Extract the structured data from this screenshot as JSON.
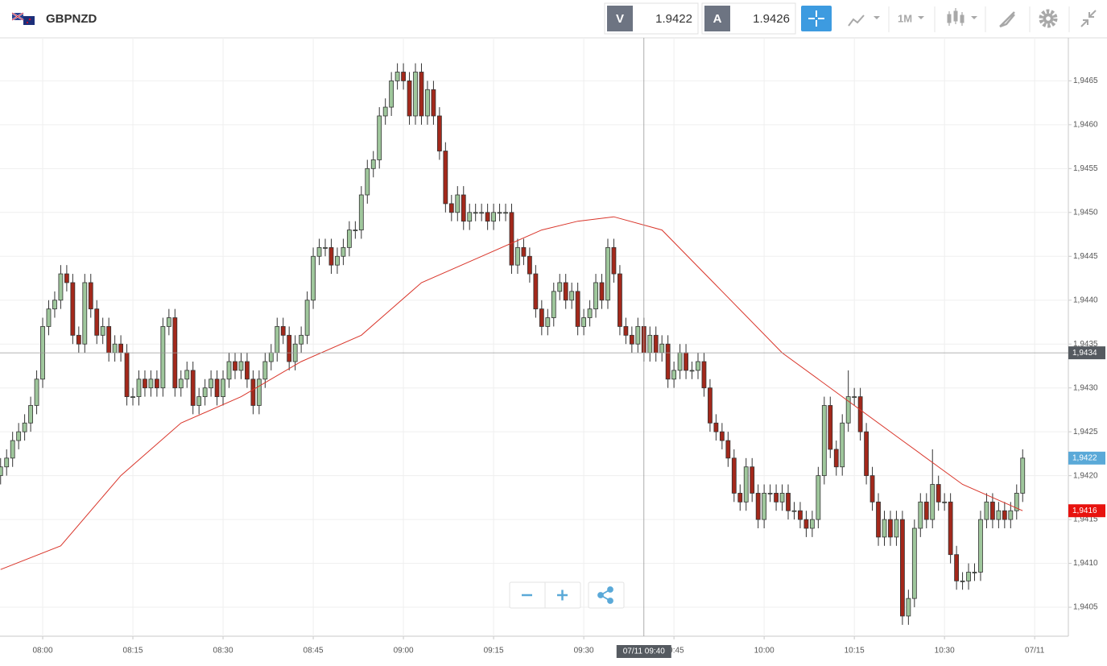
{
  "toolbar": {
    "symbol": "GBPNZD",
    "bid_label": "V",
    "bid": 1.9422,
    "ask_label": "A",
    "ask": 1.9426,
    "timeframe": "1M"
  },
  "chart_data": {
    "type": "candlestick",
    "open": [
      1.942,
      1.9421,
      1.9422,
      1.9424,
      1.9425,
      1.9426,
      1.9428,
      1.9431,
      1.9437,
      1.9439,
      1.944,
      1.9443,
      1.9442,
      1.9436,
      1.9435,
      1.9442,
      1.9439,
      1.9436,
      1.9437,
      1.9434,
      1.9435,
      1.9434,
      1.9429,
      1.9429,
      1.9431,
      1.943,
      1.9431,
      1.943,
      1.9437,
      1.9438,
      1.943,
      1.9431,
      1.9432,
      1.9428,
      1.9429,
      1.943,
      1.9431,
      1.9429,
      1.9431,
      1.9433,
      1.9432,
      1.9433,
      1.9431,
      1.9428,
      1.9431,
      1.9433,
      1.9434,
      1.9437,
      1.9436,
      1.9433,
      1.9435,
      1.9436,
      1.944,
      1.9445,
      1.9446,
      1.9446,
      1.9444,
      1.9445,
      1.9446,
      1.9448,
      1.9448,
      1.9452,
      1.9455,
      1.9456,
      1.9461,
      1.9462,
      1.9465,
      1.9466,
      1.9465,
      1.9461,
      1.9466,
      1.9461,
      1.9464,
      1.9461,
      1.9457,
      1.9451,
      1.945,
      1.9452,
      1.9449,
      1.945,
      1.945,
      1.945,
      1.9449,
      1.945,
      1.945,
      1.945,
      1.9444,
      1.9446,
      1.9445,
      1.9443,
      1.9439,
      1.9437,
      1.9438,
      1.9441,
      1.9442,
      1.944,
      1.9441,
      1.9437,
      1.9438,
      1.9439,
      1.9442,
      1.944,
      1.9446,
      1.9443,
      1.9437,
      1.9436,
      1.9435,
      1.9437,
      1.9434,
      1.9436,
      1.9434,
      1.9435,
      1.9431,
      1.9432,
      1.9434,
      1.9432,
      1.9432,
      1.9433,
      1.943,
      1.9426,
      1.9425,
      1.9424,
      1.9422,
      1.9418,
      1.9417,
      1.9421,
      1.9418,
      1.9415,
      1.9418,
      1.9418,
      1.9417,
      1.9418,
      1.9416,
      1.9416,
      1.9415,
      1.9414,
      1.9415,
      1.942,
      1.9428,
      1.9423,
      1.9421,
      1.9426,
      1.9429,
      1.9429,
      1.9425,
      1.942,
      1.9417,
      1.9413,
      1.9415,
      1.9413,
      1.9415,
      1.9404,
      1.9406,
      1.9414,
      1.9417,
      1.9415,
      1.9419,
      1.9417,
      1.9417,
      1.9411,
      1.9408,
      1.9408,
      1.9409,
      1.9409,
      1.9415,
      1.9417,
      1.9415,
      1.9416,
      1.9415,
      1.9416,
      1.9418
    ],
    "high": [
      1.9422,
      1.9423,
      1.9425,
      1.9426,
      1.9427,
      1.9429,
      1.9432,
      1.9438,
      1.944,
      1.9441,
      1.9444,
      1.9444,
      1.9443,
      1.9437,
      1.9443,
      1.9443,
      1.944,
      1.9438,
      1.9438,
      1.9436,
      1.9436,
      1.9435,
      1.943,
      1.9432,
      1.9432,
      1.9432,
      1.9432,
      1.9438,
      1.9439,
      1.9439,
      1.9432,
      1.9433,
      1.9433,
      1.943,
      1.9431,
      1.9432,
      1.9432,
      1.9432,
      1.9434,
      1.9434,
      1.9434,
      1.9434,
      1.9432,
      1.9432,
      1.9434,
      1.9435,
      1.9438,
      1.9438,
      1.9437,
      1.9436,
      1.9437,
      1.9441,
      1.9446,
      1.9447,
      1.9447,
      1.9447,
      1.9446,
      1.9447,
      1.9449,
      1.9449,
      1.9453,
      1.9456,
      1.9457,
      1.9462,
      1.9463,
      1.9466,
      1.9467,
      1.9467,
      1.9466,
      1.9467,
      1.9467,
      1.9465,
      1.9465,
      1.9462,
      1.9458,
      1.9452,
      1.9453,
      1.9453,
      1.9451,
      1.9451,
      1.9451,
      1.9451,
      1.9451,
      1.9451,
      1.9451,
      1.9451,
      1.9447,
      1.9447,
      1.9446,
      1.9444,
      1.944,
      1.9439,
      1.9442,
      1.9443,
      1.9443,
      1.9442,
      1.9442,
      1.9439,
      1.944,
      1.9443,
      1.9443,
      1.9447,
      1.9447,
      1.9444,
      1.9438,
      1.9437,
      1.9438,
      1.9438,
      1.9437,
      1.9437,
      1.9436,
      1.9436,
      1.9433,
      1.9435,
      1.9435,
      1.9433,
      1.9434,
      1.9434,
      1.9431,
      1.9427,
      1.9426,
      1.9425,
      1.9423,
      1.9419,
      1.9422,
      1.9422,
      1.9419,
      1.9419,
      1.9419,
      1.9419,
      1.9419,
      1.9419,
      1.9417,
      1.9417,
      1.9416,
      1.9416,
      1.9421,
      1.9429,
      1.9429,
      1.9424,
      1.9427,
      1.9432,
      1.943,
      1.943,
      1.9426,
      1.9421,
      1.9418,
      1.9416,
      1.9416,
      1.9416,
      1.9416,
      1.9407,
      1.9415,
      1.9418,
      1.9418,
      1.9423,
      1.942,
      1.9418,
      1.9418,
      1.9412,
      1.9409,
      1.941,
      1.941,
      1.9416,
      1.9418,
      1.9418,
      1.9417,
      1.9417,
      1.9417,
      1.9419,
      1.9423
    ],
    "low": [
      1.9419,
      1.942,
      1.9421,
      1.9423,
      1.9424,
      1.9425,
      1.9427,
      1.943,
      1.9436,
      1.9438,
      1.9439,
      1.9441,
      1.9435,
      1.9434,
      1.9434,
      1.9438,
      1.9435,
      1.9435,
      1.9433,
      1.9433,
      1.9433,
      1.9428,
      1.9428,
      1.9428,
      1.9429,
      1.9429,
      1.9429,
      1.9429,
      1.9436,
      1.9429,
      1.9429,
      1.943,
      1.9427,
      1.9427,
      1.9428,
      1.9429,
      1.9428,
      1.9428,
      1.943,
      1.9431,
      1.9431,
      1.943,
      1.9427,
      1.9427,
      1.943,
      1.9432,
      1.9433,
      1.9435,
      1.9432,
      1.9432,
      1.9434,
      1.9435,
      1.9439,
      1.9444,
      1.9445,
      1.9443,
      1.9443,
      1.9444,
      1.9445,
      1.9447,
      1.9447,
      1.9451,
      1.9454,
      1.9455,
      1.946,
      1.9461,
      1.9464,
      1.9464,
      1.946,
      1.946,
      1.946,
      1.946,
      1.946,
      1.9456,
      1.945,
      1.9449,
      1.9449,
      1.9448,
      1.9448,
      1.9449,
      1.9449,
      1.9448,
      1.9448,
      1.9449,
      1.9449,
      1.9443,
      1.9443,
      1.9444,
      1.9442,
      1.9438,
      1.9436,
      1.9436,
      1.9437,
      1.944,
      1.9439,
      1.9439,
      1.9436,
      1.9436,
      1.9437,
      1.9438,
      1.9439,
      1.9439,
      1.9442,
      1.9436,
      1.9435,
      1.9434,
      1.9434,
      1.9433,
      1.9433,
      1.9433,
      1.9433,
      1.943,
      1.943,
      1.9431,
      1.9431,
      1.9431,
      1.9431,
      1.9429,
      1.9425,
      1.9424,
      1.9423,
      1.9421,
      1.9417,
      1.9416,
      1.9416,
      1.9417,
      1.9414,
      1.9414,
      1.9417,
      1.9416,
      1.9416,
      1.9415,
      1.9415,
      1.9414,
      1.9413,
      1.9413,
      1.9414,
      1.9419,
      1.9422,
      1.942,
      1.942,
      1.9425,
      1.9428,
      1.9424,
      1.9419,
      1.9416,
      1.9412,
      1.9412,
      1.9412,
      1.9412,
      1.9403,
      1.9403,
      1.9405,
      1.9413,
      1.9414,
      1.9414,
      1.9416,
      1.9416,
      1.941,
      1.9407,
      1.9407,
      1.9407,
      1.9408,
      1.9408,
      1.9414,
      1.9414,
      1.9414,
      1.9414,
      1.9414,
      1.9415,
      1.9417
    ],
    "close": [
      1.9421,
      1.9422,
      1.9424,
      1.9425,
      1.9426,
      1.9428,
      1.9431,
      1.9437,
      1.9439,
      1.944,
      1.9443,
      1.9442,
      1.9436,
      1.9435,
      1.9442,
      1.9439,
      1.9436,
      1.9437,
      1.9434,
      1.9435,
      1.9434,
      1.9429,
      1.9429,
      1.9431,
      1.943,
      1.9431,
      1.943,
      1.9437,
      1.9438,
      1.943,
      1.9431,
      1.9432,
      1.9428,
      1.9429,
      1.943,
      1.9431,
      1.9429,
      1.9431,
      1.9433,
      1.9432,
      1.9433,
      1.9431,
      1.9428,
      1.9431,
      1.9433,
      1.9434,
      1.9437,
      1.9436,
      1.9433,
      1.9435,
      1.9436,
      1.944,
      1.9445,
      1.9446,
      1.9446,
      1.9444,
      1.9445,
      1.9446,
      1.9448,
      1.9448,
      1.9452,
      1.9455,
      1.9456,
      1.9461,
      1.9462,
      1.9465,
      1.9466,
      1.9465,
      1.9461,
      1.9466,
      1.9461,
      1.9464,
      1.9461,
      1.9457,
      1.9451,
      1.945,
      1.9452,
      1.9449,
      1.945,
      1.945,
      1.945,
      1.9449,
      1.945,
      1.945,
      1.945,
      1.9444,
      1.9446,
      1.9445,
      1.9443,
      1.9439,
      1.9437,
      1.9438,
      1.9441,
      1.9442,
      1.944,
      1.9441,
      1.9437,
      1.9438,
      1.9439,
      1.9442,
      1.944,
      1.9446,
      1.9443,
      1.9437,
      1.9436,
      1.9435,
      1.9437,
      1.9434,
      1.9436,
      1.9434,
      1.9435,
      1.9431,
      1.9432,
      1.9434,
      1.9432,
      1.9432,
      1.9433,
      1.943,
      1.9426,
      1.9425,
      1.9424,
      1.9422,
      1.9418,
      1.9417,
      1.9421,
      1.9418,
      1.9415,
      1.9418,
      1.9418,
      1.9417,
      1.9418,
      1.9416,
      1.9416,
      1.9415,
      1.9414,
      1.9415,
      1.942,
      1.9428,
      1.9423,
      1.9421,
      1.9426,
      1.9429,
      1.9429,
      1.9425,
      1.942,
      1.9417,
      1.9413,
      1.9415,
      1.9413,
      1.9415,
      1.9404,
      1.9406,
      1.9414,
      1.9417,
      1.9415,
      1.9419,
      1.9417,
      1.9417,
      1.9411,
      1.9408,
      1.9408,
      1.9409,
      1.9409,
      1.9415,
      1.9417,
      1.9415,
      1.9416,
      1.9415,
      1.9416,
      1.9418,
      1.9422
    ],
    "up_color": "#9fc79c",
    "down_color": "#a3281b",
    "ma": {
      "color": "#d9352a",
      "x": [
        0,
        10,
        20,
        30,
        40,
        50,
        60,
        70,
        80,
        90,
        96,
        102,
        110,
        120,
        130,
        140,
        150,
        160,
        170
      ],
      "values": [
        1.94093,
        1.9412,
        1.942,
        1.9426,
        1.9429,
        1.9433,
        1.9436,
        1.9442,
        1.9445,
        1.9448,
        1.9449,
        1.94495,
        1.9448,
        1.9441,
        1.9434,
        1.9429,
        1.9424,
        1.9419,
        1.9416
      ]
    },
    "xlim": [
      -0.1,
      177.6
    ],
    "xticks": [
      {
        "value": 7,
        "label": "08:00"
      },
      {
        "value": 22,
        "label": "08:15"
      },
      {
        "value": 37,
        "label": "08:30"
      },
      {
        "value": 52,
        "label": "08:45"
      },
      {
        "value": 67,
        "label": "09:00"
      },
      {
        "value": 82,
        "label": "09:15"
      },
      {
        "value": 97,
        "label": "09:30"
      },
      {
        "value": 112,
        "label": "09:45"
      },
      {
        "value": 127,
        "label": "10:00"
      },
      {
        "value": 142,
        "label": "10:15"
      },
      {
        "value": 157,
        "label": "10:30"
      },
      {
        "value": 172,
        "label": "07/11"
      }
    ],
    "ylim": [
      1.94017,
      1.94699
    ],
    "yticks": [
      {
        "value": 1.9405,
        "label": "1,9405"
      },
      {
        "value": 1.941,
        "label": "1,9410"
      },
      {
        "value": 1.9415,
        "label": "1,9415"
      },
      {
        "value": 1.942,
        "label": "1,9420"
      },
      {
        "value": 1.9425,
        "label": "1,9425"
      },
      {
        "value": 1.943,
        "label": "1,9430"
      },
      {
        "value": 1.9435,
        "label": "1,9435"
      },
      {
        "value": 1.944,
        "label": "1,9440"
      },
      {
        "value": 1.9445,
        "label": "1,9445"
      },
      {
        "value": 1.945,
        "label": "1,9450"
      },
      {
        "value": 1.9455,
        "label": "1,9455"
      },
      {
        "value": 1.946,
        "label": "1,9460"
      },
      {
        "value": 1.9465,
        "label": "1,9465"
      }
    ],
    "grid": true,
    "crosshair": {
      "price": {
        "value": 1.9434,
        "label": "1,9434"
      },
      "time": {
        "value": 107,
        "label": "07/11 09:40"
      },
      "color": "#555a60"
    },
    "price_labels": [
      {
        "value": 1.9422,
        "label": "1,9422",
        "color": "#5aa9d8"
      },
      {
        "value": 1.9416,
        "label": "1,9416",
        "color": "#e8130f"
      }
    ]
  }
}
